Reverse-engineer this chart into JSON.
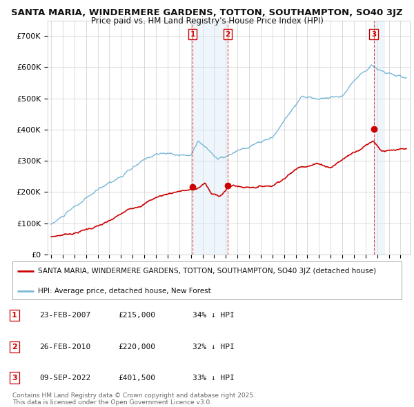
{
  "title_line1": "SANTA MARIA, WINDERMERE GARDENS, TOTTON, SOUTHAMPTON, SO40 3JZ",
  "title_line2": "Price paid vs. HM Land Registry's House Price Index (HPI)",
  "ylim": [
    0,
    750000
  ],
  "yticks": [
    0,
    100000,
    200000,
    300000,
    400000,
    500000,
    600000,
    700000
  ],
  "ytick_labels": [
    "£0",
    "£100K",
    "£200K",
    "£300K",
    "£400K",
    "£500K",
    "£600K",
    "£700K"
  ],
  "xlim_start": 1994.7,
  "xlim_end": 2025.8,
  "hpi_color": "#7ab8d8",
  "price_color": "#cc0000",
  "shade_color": "#d0e8f5",
  "transactions": [
    {
      "date": 2007.14,
      "price": 215000,
      "label": "1"
    },
    {
      "date": 2010.15,
      "price": 220000,
      "label": "2"
    },
    {
      "date": 2022.69,
      "price": 401500,
      "label": "3"
    }
  ],
  "legend_entries": [
    "SANTA MARIA, WINDERMERE GARDENS, TOTTON, SOUTHAMPTON, SO40 3JZ (detached house)",
    "HPI: Average price, detached house, New Forest"
  ],
  "table_rows": [
    {
      "num": "1",
      "date": "23-FEB-2007",
      "price": "£215,000",
      "hpi": "34% ↓ HPI"
    },
    {
      "num": "2",
      "date": "26-FEB-2010",
      "price": "£220,000",
      "hpi": "32% ↓ HPI"
    },
    {
      "num": "3",
      "date": "09-SEP-2022",
      "price": "£401,500",
      "hpi": "33% ↓ HPI"
    }
  ],
  "footnote": "Contains HM Land Registry data © Crown copyright and database right 2025.\nThis data is licensed under the Open Government Licence v3.0.",
  "background_color": "#ffffff",
  "grid_color": "#cccccc"
}
